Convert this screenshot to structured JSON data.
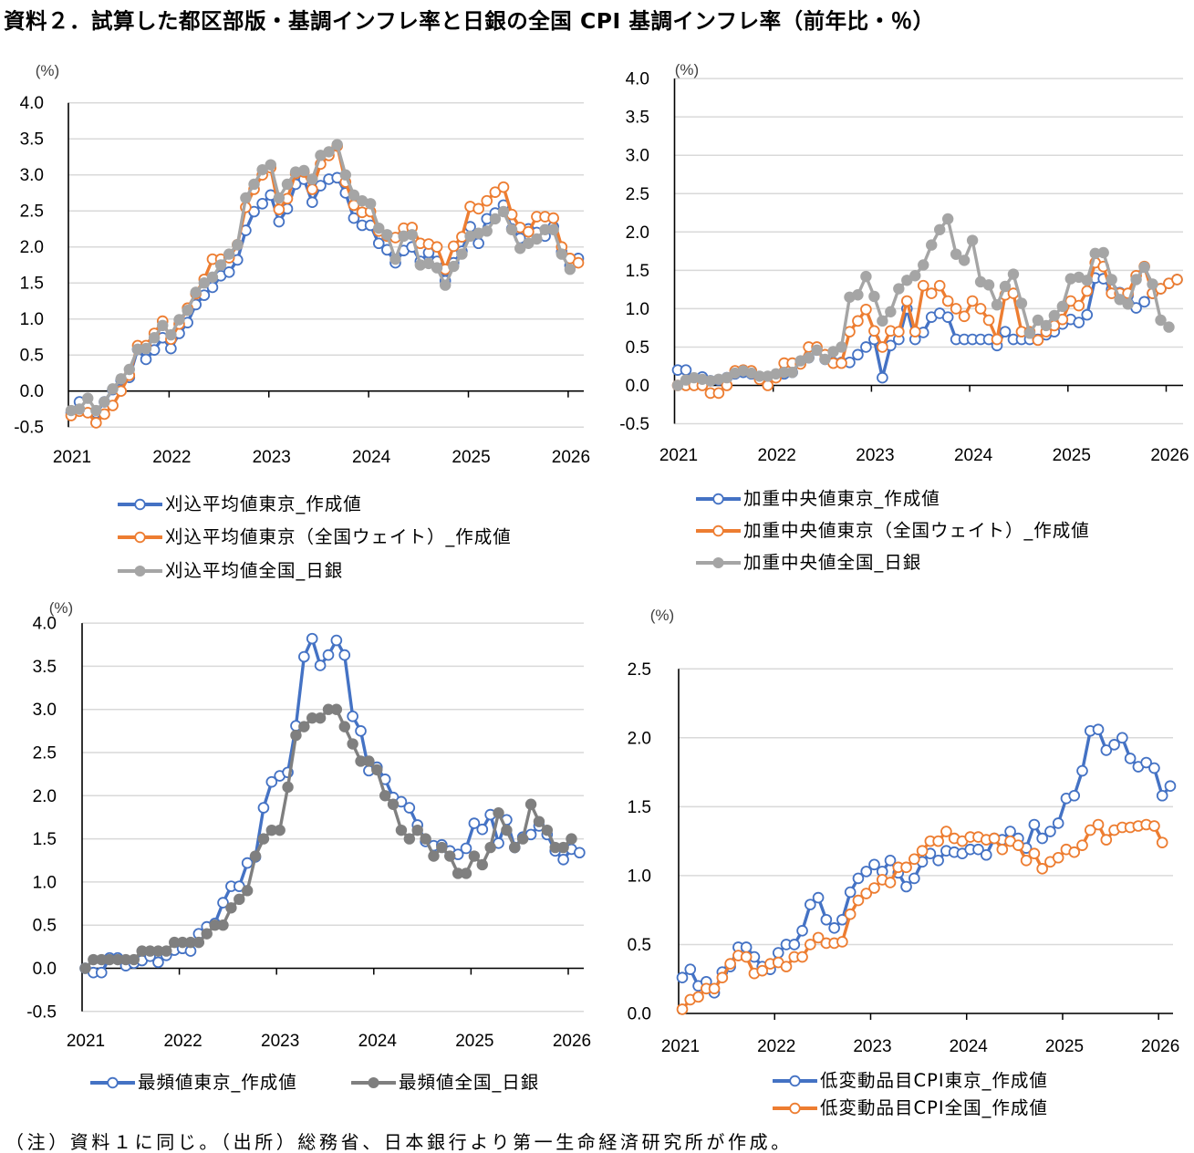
{
  "title": "資料２．試算した都区部版・基調インフレ率と日銀の全国 CPI 基調インフレ率（前年比・％）",
  "footnote": "（注）資料１に同じ。（出所）総務省、日本銀行より第一生命経済研究所が作成。",
  "chart_data": [
    {
      "type": "line",
      "title": "",
      "xlabel": "",
      "ylabel": "",
      "y_unit_label": "(%)",
      "ylim": [
        -0.5,
        4.0
      ],
      "y_ticks": [
        4.0,
        3.5,
        3.0,
        2.5,
        2.0,
        1.5,
        1.0,
        0.5,
        0.0,
        -0.5
      ],
      "y_tick_labels": [
        "4.0",
        "3.5",
        "3.0",
        "2.5",
        "2.0",
        "1.5",
        "1.0",
        "0.5",
        "0.0",
        "-0.5"
      ],
      "negative_label_color": "#ff0000",
      "x_start": "2021-01",
      "x_frequency": "monthly",
      "x_tick_labels": [
        "2021",
        "2022",
        "2023",
        "2024",
        "2025",
        "2026"
      ],
      "grid": true,
      "legend": "bottom",
      "series": [
        {
          "name": "刈込平均値東京_作成値",
          "color": "#4472c4",
          "marker": "open-circle",
          "values": [
            -0.3,
            -0.15,
            -0.22,
            -0.3,
            -0.15,
            0.02,
            0.15,
            0.19,
            0.58,
            0.44,
            0.57,
            0.74,
            0.59,
            0.8,
            0.95,
            1.2,
            1.33,
            1.44,
            1.6,
            1.65,
            1.82,
            2.23,
            2.49,
            2.6,
            2.72,
            2.35,
            2.53,
            2.87,
            2.94,
            2.62,
            2.85,
            2.94,
            2.96,
            2.75,
            2.4,
            2.3,
            2.3,
            2.05,
            1.96,
            1.78,
            1.95,
            2.0,
            1.8,
            1.92,
            1.8,
            1.53,
            1.78,
            1.94,
            2.28,
            2.05,
            2.39,
            2.47,
            2.58,
            2.25,
            2.12,
            2.25,
            2.2,
            2.15,
            2.28,
            1.93,
            1.74,
            1.84
          ]
        },
        {
          "name": "刈込平均値東京（全国ウェイト）_作成値",
          "color": "#ed7d31",
          "marker": "open-circle",
          "values": [
            -0.34,
            -0.28,
            -0.3,
            -0.44,
            -0.32,
            -0.2,
            0.0,
            0.22,
            0.63,
            0.63,
            0.8,
            0.97,
            0.72,
            0.93,
            1.15,
            1.35,
            1.55,
            1.83,
            1.83,
            1.85,
            2.03,
            2.55,
            2.8,
            3.0,
            3.1,
            2.52,
            2.67,
            3.02,
            3.04,
            2.8,
            3.15,
            3.27,
            3.4,
            2.9,
            2.58,
            2.48,
            2.49,
            2.22,
            2.15,
            2.13,
            2.26,
            2.27,
            2.05,
            2.04,
            2.0,
            1.69,
            2.01,
            2.14,
            2.56,
            2.53,
            2.64,
            2.76,
            2.83,
            2.45,
            2.27,
            2.21,
            2.42,
            2.42,
            2.4,
            2.0,
            1.84,
            1.78
          ]
        },
        {
          "name": "刈込平均値全国_日銀",
          "color": "#a5a5a5",
          "marker": "filled-circle",
          "values": [
            -0.27,
            -0.25,
            -0.1,
            -0.27,
            -0.15,
            0.03,
            0.17,
            0.3,
            0.58,
            0.59,
            0.74,
            0.91,
            0.78,
            0.99,
            1.12,
            1.37,
            1.5,
            1.58,
            1.75,
            1.9,
            2.03,
            2.68,
            2.87,
            3.07,
            3.14,
            2.68,
            2.87,
            3.04,
            3.06,
            2.94,
            3.27,
            3.32,
            3.42,
            3.0,
            2.72,
            2.64,
            2.6,
            2.26,
            2.17,
            1.83,
            2.15,
            2.17,
            1.75,
            1.77,
            1.71,
            1.47,
            1.73,
            1.9,
            2.15,
            2.19,
            2.22,
            2.39,
            2.49,
            2.24,
            1.98,
            2.05,
            2.11,
            2.24,
            2.24,
            1.9,
            1.69
          ]
        }
      ]
    },
    {
      "type": "line",
      "title": "",
      "xlabel": "",
      "ylabel": "",
      "y_unit_label": "(%)",
      "ylim": [
        -0.5,
        4.0
      ],
      "y_ticks": [
        4.0,
        3.5,
        3.0,
        2.5,
        2.0,
        1.5,
        1.0,
        0.5,
        0.0,
        -0.5
      ],
      "y_tick_labels": [
        "4.0",
        "3.5",
        "3.0",
        "2.5",
        "2.0",
        "1.5",
        "1.0",
        "0.5",
        "0.0",
        "-0.5"
      ],
      "negative_label_color": "#ff0000",
      "x_start": "2021-01",
      "x_frequency": "monthly",
      "x_tick_labels": [
        "2021",
        "2022",
        "2023",
        "2024",
        "2025",
        "2026"
      ],
      "grid": true,
      "legend": "bottom",
      "series": [
        {
          "name": "加重中央値東京_作成値",
          "color": "#4472c4",
          "marker": "open-circle",
          "values": [
            0.2,
            0.2,
            0.08,
            0.11,
            0.06,
            0.07,
            0.1,
            0.15,
            0.17,
            0.15,
            0.1,
            0.1,
            0.12,
            0.15,
            0.17,
            0.3,
            0.36,
            0.46,
            0.34,
            0.3,
            0.3,
            0.3,
            0.4,
            0.5,
            0.6,
            0.1,
            0.52,
            0.6,
            1.0,
            0.6,
            0.69,
            0.89,
            0.94,
            0.89,
            0.6,
            0.6,
            0.6,
            0.6,
            0.6,
            0.52,
            0.7,
            0.6,
            0.6,
            0.6,
            0.6,
            0.66,
            0.7,
            0.8,
            0.86,
            0.82,
            0.92,
            1.4,
            1.39,
            1.25,
            1.21,
            1.17,
            1.01,
            1.09,
            1.2,
            1.26,
            1.33,
            1.38
          ]
        },
        {
          "name": "加重中央値東京（全国ウェイト）_作成値",
          "color": "#ed7d31",
          "marker": "open-circle",
          "values": [
            0.0,
            0.0,
            0.0,
            0.0,
            -0.1,
            -0.1,
            0.0,
            0.19,
            0.2,
            0.19,
            0.08,
            0.0,
            0.1,
            0.29,
            0.29,
            0.28,
            0.5,
            0.5,
            0.4,
            0.29,
            0.29,
            0.7,
            0.84,
            0.99,
            0.71,
            0.5,
            0.71,
            0.7,
            1.1,
            0.7,
            1.3,
            1.2,
            1.3,
            1.1,
            1.0,
            0.9,
            1.1,
            1.0,
            0.85,
            0.6,
            1.18,
            1.2,
            0.7,
            0.7,
            0.59,
            0.7,
            0.78,
            0.86,
            1.1,
            1.04,
            1.23,
            1.6,
            1.55,
            1.2,
            1.2,
            1.2,
            1.43,
            1.55,
            1.2,
            1.26,
            1.33,
            1.38
          ]
        },
        {
          "name": "加重中央値全国_日銀",
          "color": "#a5a5a5",
          "marker": "filled-circle",
          "values": [
            0.0,
            0.07,
            0.1,
            0.08,
            0.06,
            0.08,
            0.1,
            0.16,
            0.19,
            0.16,
            0.12,
            0.12,
            0.15,
            0.17,
            0.17,
            0.32,
            0.36,
            0.46,
            0.34,
            0.44,
            0.5,
            1.15,
            1.18,
            1.42,
            1.16,
            0.84,
            0.96,
            1.26,
            1.37,
            1.43,
            1.57,
            1.83,
            2.03,
            2.17,
            1.71,
            1.63,
            1.89,
            1.35,
            1.31,
            1.05,
            1.29,
            1.45,
            1.07,
            0.68,
            0.85,
            0.78,
            0.91,
            1.03,
            1.39,
            1.41,
            1.37,
            1.72,
            1.73,
            1.38,
            1.12,
            1.06,
            1.38,
            1.54,
            1.32,
            0.85,
            0.76
          ]
        }
      ]
    },
    {
      "type": "line",
      "title": "",
      "xlabel": "",
      "ylabel": "",
      "y_unit_label": "(%)",
      "ylim": [
        -0.5,
        4.0
      ],
      "y_ticks": [
        4.0,
        3.5,
        3.0,
        2.5,
        2.0,
        1.5,
        1.0,
        0.5,
        0.0,
        -0.5
      ],
      "y_tick_labels": [
        "4.0",
        "3.5",
        "3.0",
        "2.5",
        "2.0",
        "1.5",
        "1.0",
        "0.5",
        "0.0",
        "-0.5"
      ],
      "negative_label_color": "#ff0000",
      "x_start": "2021-01",
      "x_frequency": "monthly",
      "x_tick_labels": [
        "2021",
        "2022",
        "2023",
        "2024",
        "2025",
        "2026"
      ],
      "grid": true,
      "legend": "bottom",
      "series": [
        {
          "name": "最頻値東京_作成値",
          "color": "#4472c4",
          "marker": "open-circle",
          "values": [
            0.0,
            -0.05,
            -0.05,
            0.12,
            0.12,
            0.03,
            0.06,
            0.09,
            0.14,
            0.07,
            0.15,
            0.21,
            0.23,
            0.2,
            0.4,
            0.48,
            0.52,
            0.76,
            0.95,
            0.95,
            1.22,
            1.29,
            1.86,
            2.16,
            2.23,
            2.27,
            2.81,
            3.61,
            3.82,
            3.51,
            3.63,
            3.8,
            3.63,
            2.92,
            2.75,
            2.29,
            2.33,
            2.19,
            1.98,
            1.93,
            1.86,
            1.66,
            1.47,
            1.42,
            1.43,
            1.36,
            1.32,
            1.39,
            1.68,
            1.61,
            1.78,
            1.45,
            1.72,
            1.4,
            1.52,
            1.55,
            1.65,
            1.55,
            1.36,
            1.26,
            1.38,
            1.34
          ]
        },
        {
          "name": "最頻値全国_日銀",
          "color": "#7f7f7f",
          "marker": "filled-circle",
          "values": [
            0.0,
            0.1,
            0.1,
            0.1,
            0.1,
            0.1,
            0.1,
            0.2,
            0.2,
            0.2,
            0.2,
            0.3,
            0.3,
            0.3,
            0.3,
            0.4,
            0.5,
            0.5,
            0.7,
            0.8,
            0.9,
            1.3,
            1.5,
            1.6,
            1.6,
            2.1,
            2.7,
            2.8,
            2.9,
            2.9,
            3.0,
            3.0,
            2.8,
            2.6,
            2.4,
            2.4,
            2.3,
            2.0,
            1.9,
            1.6,
            1.5,
            1.6,
            1.5,
            1.3,
            1.4,
            1.3,
            1.1,
            1.1,
            1.3,
            1.2,
            1.4,
            1.8,
            1.6,
            1.4,
            1.5,
            1.9,
            1.7,
            1.6,
            1.4,
            1.4,
            1.5
          ]
        }
      ]
    },
    {
      "type": "line",
      "title": "",
      "xlabel": "",
      "ylabel": "",
      "y_unit_label": "(%)",
      "ylim": [
        0.0,
        2.5
      ],
      "y_ticks": [
        2.5,
        2.0,
        1.5,
        1.0,
        0.5,
        0.0
      ],
      "y_tick_labels": [
        "2.5",
        "2.0",
        "1.5",
        "1.0",
        "0.5",
        "0.0"
      ],
      "negative_label_color": "#ff0000",
      "x_start": "2021-01",
      "x_frequency": "monthly",
      "x_tick_labels": [
        "2021",
        "2022",
        "2023",
        "2024",
        "2025",
        "2026"
      ],
      "grid": true,
      "legend": "bottom",
      "series": [
        {
          "name": "低変動品目CPI東京_作成値",
          "color": "#4472c4",
          "marker": "open-circle",
          "values": [
            0.26,
            0.32,
            0.2,
            0.23,
            0.15,
            0.3,
            0.34,
            0.48,
            0.48,
            0.41,
            0.34,
            0.32,
            0.44,
            0.5,
            0.5,
            0.6,
            0.79,
            0.84,
            0.68,
            0.62,
            0.68,
            0.88,
            0.98,
            1.03,
            1.08,
            1.03,
            1.11,
            1.02,
            0.92,
            0.98,
            1.1,
            1.16,
            1.11,
            1.18,
            1.17,
            1.16,
            1.19,
            1.19,
            1.15,
            1.27,
            1.26,
            1.32,
            1.27,
            1.2,
            1.37,
            1.27,
            1.32,
            1.38,
            1.56,
            1.58,
            1.76,
            2.05,
            2.06,
            1.91,
            1.95,
            2.0,
            1.85,
            1.79,
            1.82,
            1.78,
            1.58,
            1.65
          ]
        },
        {
          "name": "低変動品目CPI全国_作成値",
          "color": "#ed7d31",
          "marker": "open-circle",
          "values": [
            0.03,
            0.1,
            0.12,
            0.18,
            0.18,
            0.26,
            0.36,
            0.42,
            0.41,
            0.29,
            0.31,
            0.36,
            0.37,
            0.34,
            0.41,
            0.41,
            0.5,
            0.55,
            0.51,
            0.51,
            0.52,
            0.72,
            0.82,
            0.87,
            0.91,
            0.97,
            0.95,
            1.06,
            1.06,
            1.12,
            1.18,
            1.25,
            1.25,
            1.32,
            1.27,
            1.25,
            1.28,
            1.28,
            1.26,
            1.27,
            1.19,
            1.25,
            1.22,
            1.11,
            1.16,
            1.05,
            1.1,
            1.13,
            1.19,
            1.17,
            1.22,
            1.33,
            1.37,
            1.26,
            1.33,
            1.35,
            1.35,
            1.36,
            1.37,
            1.36,
            1.24
          ]
        }
      ]
    }
  ]
}
